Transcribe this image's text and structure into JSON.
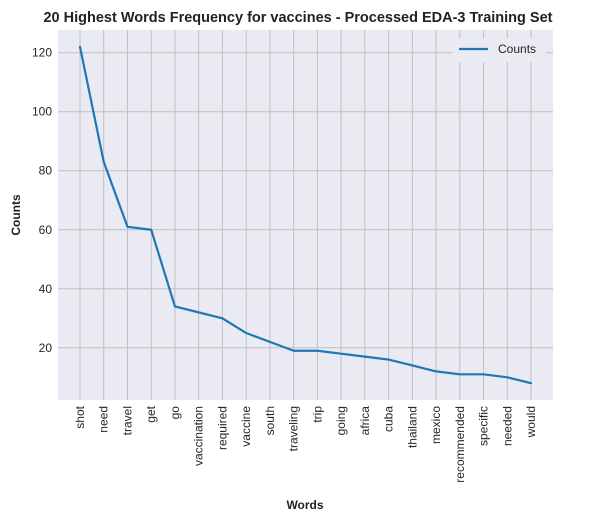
{
  "chart_data": {
    "type": "line",
    "title": "20 Highest Words Frequency for vaccines - Processed EDA-3 Training Set",
    "xlabel": "Words",
    "ylabel": "Counts",
    "categories": [
      "shot",
      "need",
      "travel",
      "get",
      "go",
      "vaccination",
      "required",
      "vaccine",
      "south",
      "traveling",
      "trip",
      "going",
      "africa",
      "cuba",
      "thailand",
      "mexico",
      "recommended",
      "specific",
      "needed",
      "would"
    ],
    "series": [
      {
        "name": "Counts",
        "values": [
          122,
          83,
          61,
          60,
          34,
          32,
          30,
          25,
          22,
          19,
          19,
          18,
          17,
          16,
          14,
          12,
          11,
          11,
          10,
          8
        ]
      }
    ],
    "yticks": [
      20,
      40,
      60,
      80,
      100,
      120
    ],
    "ylim": [
      2.3,
      127.7
    ],
    "grid": true,
    "legend": "top-right",
    "colors": {
      "line": "#1f77b4",
      "plot_background": "#eaeaf2",
      "grid": "#c0c0c0"
    }
  }
}
